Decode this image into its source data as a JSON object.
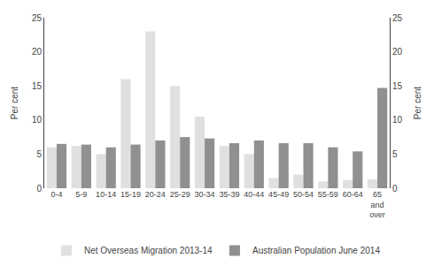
{
  "chart_data": {
    "type": "bar",
    "categories": [
      "0-4",
      "5-9",
      "10-14",
      "15-19",
      "20-24",
      "25-29",
      "30-34",
      "35-39",
      "40-44",
      "45-49",
      "50-54",
      "55-59",
      "60-64",
      "65\nand\nover"
    ],
    "series": [
      {
        "name": "Net Overseas Migration 2013-14",
        "color": "#e0e0e0",
        "values": [
          6.0,
          6.2,
          5.0,
          16.0,
          23.0,
          15.0,
          10.5,
          6.2,
          5.0,
          1.5,
          2.0,
          1.0,
          1.2,
          1.3
        ]
      },
      {
        "name": "Australian Population June 2014",
        "color": "#909090",
        "values": [
          6.5,
          6.4,
          6.0,
          6.4,
          7.0,
          7.5,
          7.3,
          6.6,
          7.0,
          6.6,
          6.6,
          6.0,
          5.4,
          14.7
        ]
      }
    ],
    "ylabel": "Per cent",
    "y2label": "Per cent",
    "ylim": [
      0,
      25
    ],
    "yticks": [
      0,
      5,
      10,
      15,
      20,
      25
    ],
    "y2lim": [
      0,
      25
    ],
    "y2ticks": [
      0,
      5,
      10,
      15,
      20,
      25
    ],
    "grid": false,
    "legend": "bottom"
  }
}
